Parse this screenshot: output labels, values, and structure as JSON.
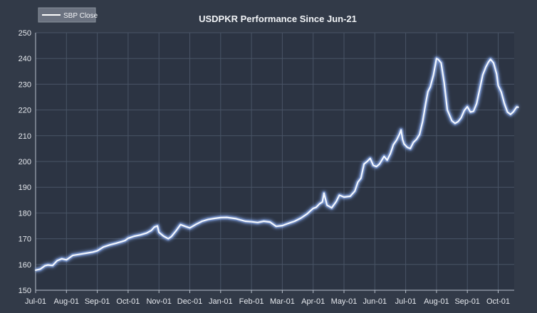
{
  "chart_data": {
    "type": "line",
    "title": "USDPKR Performance Since Jun-21",
    "xlabel": "",
    "ylabel": "",
    "ylim": [
      150,
      250
    ],
    "yticks": [
      150,
      160,
      170,
      180,
      190,
      200,
      210,
      220,
      230,
      240,
      250
    ],
    "xticks": [
      "Jul-01",
      "Aug-01",
      "Sep-01",
      "Oct-01",
      "Nov-01",
      "Dec-01",
      "Jan-01",
      "Feb-01",
      "Mar-01",
      "Apr-01",
      "May-01",
      "Jun-01",
      "Jul-01",
      "Aug-01",
      "Sep-01",
      "Oct-01"
    ],
    "grid": true,
    "legend_position": "top-left",
    "colors": {
      "background": "#323a48",
      "plot_background": "#2c3443",
      "grid": "#495466",
      "axis": "#b8c0cc",
      "line": "#f4f8ff",
      "glow": "#8fb4ff"
    },
    "series": [
      {
        "name": "SBP Close",
        "x": [
          0,
          0.15,
          0.3,
          0.4,
          0.55,
          0.7,
          0.85,
          1.0,
          1.2,
          1.4,
          1.55,
          1.7,
          1.85,
          2.0,
          2.2,
          2.4,
          2.6,
          2.8,
          2.9,
          3.0,
          3.2,
          3.4,
          3.6,
          3.75,
          3.85,
          3.95,
          4.0,
          4.15,
          4.3,
          4.4,
          4.55,
          4.7,
          4.85,
          5.0,
          5.2,
          5.4,
          5.6,
          5.8,
          6.0,
          6.2,
          6.5,
          6.8,
          7.0,
          7.2,
          7.4,
          7.6,
          7.8,
          8.0,
          8.2,
          8.4,
          8.6,
          8.8,
          9.0,
          9.1,
          9.2,
          9.3,
          9.35,
          9.45,
          9.6,
          9.75,
          9.85,
          10.0,
          10.2,
          10.35,
          10.45,
          10.55,
          10.65,
          10.75,
          10.85,
          10.95,
          11.05,
          11.15,
          11.3,
          11.4,
          11.5,
          11.55,
          11.6,
          11.7,
          11.8,
          11.85,
          11.9,
          11.95,
          12.05,
          12.15,
          12.25,
          12.35,
          12.45,
          12.55,
          12.65,
          12.72,
          12.8,
          12.9,
          13.0,
          13.05,
          13.15,
          13.25,
          13.35,
          13.5,
          13.6,
          13.7,
          13.8,
          13.9,
          14.0,
          14.1,
          14.2,
          14.3,
          14.4,
          14.5,
          14.6,
          14.68,
          14.75,
          14.85,
          14.95,
          15.0,
          15.1,
          15.2,
          15.3,
          15.4,
          15.5,
          15.6,
          15.65
        ],
        "values": [
          157.8,
          158.2,
          159.5,
          159.8,
          159.6,
          161.5,
          162.2,
          161.8,
          163.5,
          163.9,
          164.2,
          164.5,
          164.8,
          165.3,
          166.8,
          167.6,
          168.2,
          168.9,
          169.3,
          170.2,
          171.0,
          171.5,
          172.2,
          173.2,
          174.5,
          175.0,
          172.5,
          171.0,
          170.0,
          170.8,
          173.0,
          175.5,
          174.8,
          174.2,
          175.6,
          176.8,
          177.5,
          177.9,
          178.2,
          178.3,
          177.8,
          176.8,
          176.6,
          176.3,
          176.8,
          176.5,
          174.8,
          175.1,
          176.0,
          176.8,
          178.0,
          179.6,
          181.8,
          182.2,
          183.5,
          184.3,
          187.7,
          183.0,
          182.0,
          184.5,
          186.9,
          186.2,
          186.5,
          188.5,
          192.0,
          193.5,
          199.0,
          200.0,
          201.2,
          198.5,
          198.0,
          199.0,
          202.0,
          200.5,
          203.0,
          204.6,
          206.5,
          208.2,
          210.6,
          212.3,
          208.5,
          206.8,
          205.5,
          205.0,
          207.4,
          208.6,
          210.5,
          215.5,
          222.5,
          227.1,
          229.0,
          233.6,
          240.0,
          239.7,
          238.3,
          230.5,
          220.0,
          215.8,
          214.8,
          215.5,
          217.0,
          219.8,
          221.3,
          219.2,
          219.5,
          222.5,
          228.0,
          233.6,
          236.7,
          238.5,
          239.7,
          238.3,
          234.0,
          229.5,
          227.0,
          222.5,
          219.2,
          218.3,
          219.4,
          221.2,
          221.1
        ]
      }
    ]
  }
}
